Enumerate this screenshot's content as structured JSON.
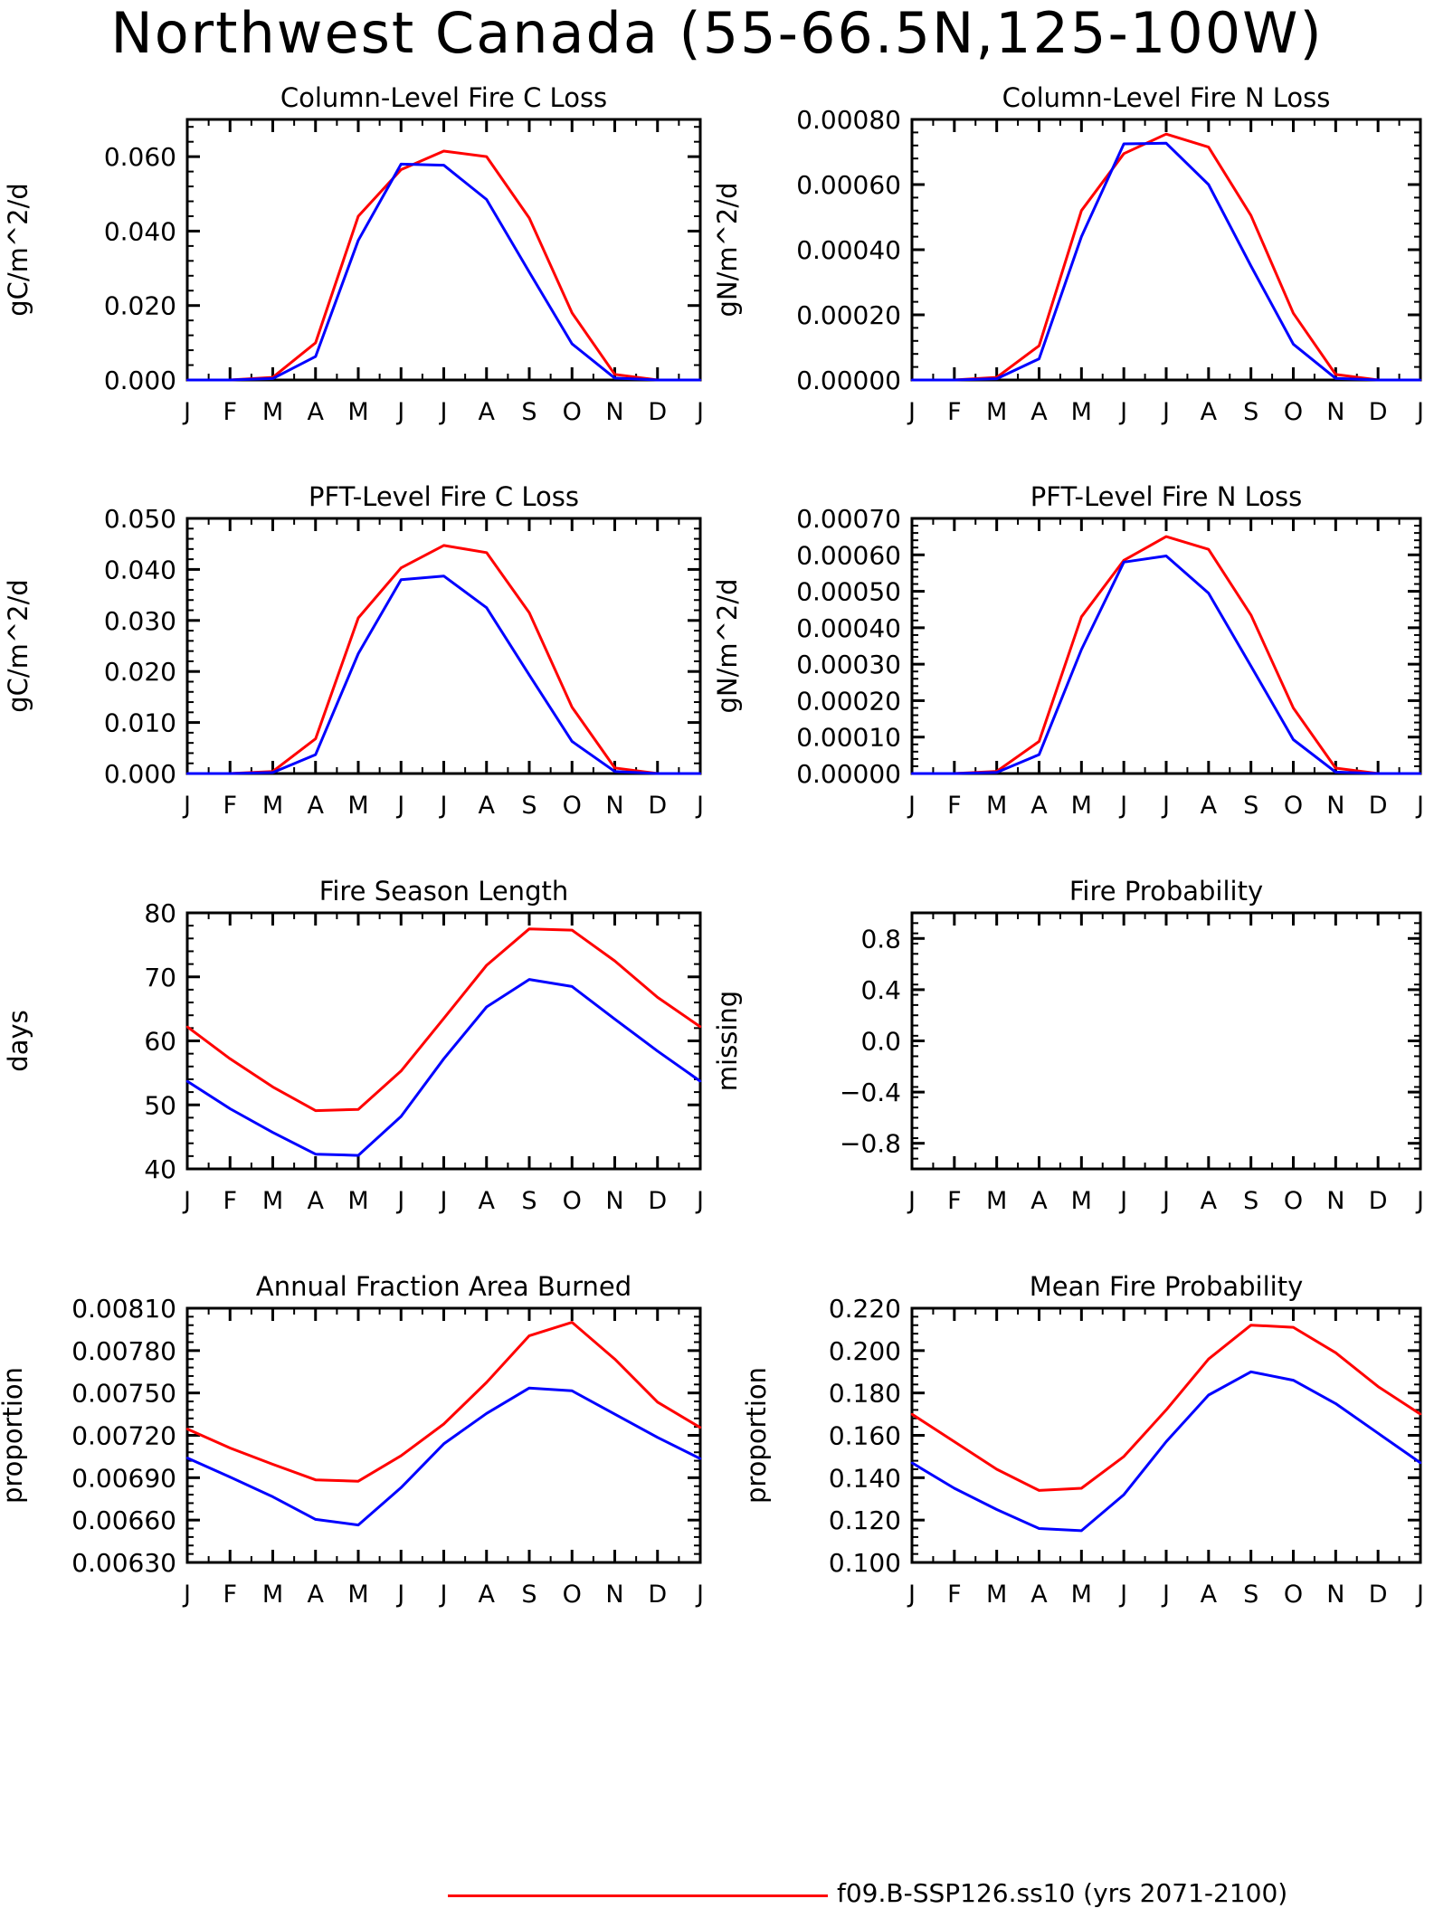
{
  "title": "Northwest Canada (55-66.5N,125-100W)",
  "legend": {
    "label": "f09.B-SSP126.ss10 (yrs 2071-2100)",
    "color": "#ff0000"
  },
  "colors": {
    "series_a": "#ff0000",
    "series_b": "#0000ff",
    "axis": "#000000"
  },
  "chart_data": [
    {
      "type": "line",
      "title": "Column-Level Fire C Loss",
      "ylabel": "gC/m^2/d",
      "categories": [
        "J",
        "F",
        "M",
        "A",
        "M",
        "J",
        "J",
        "A",
        "S",
        "O",
        "N",
        "D",
        "J"
      ],
      "ylim": [
        0,
        0.07
      ],
      "yticks": [
        0.0,
        0.02,
        0.04,
        0.06
      ],
      "ytick_labels": [
        "0.000",
        "0.020",
        "0.040",
        "0.060"
      ],
      "series": [
        {
          "color": "#ff0000",
          "values": [
            0.0,
            0.0,
            0.0007,
            0.01,
            0.044,
            0.0565,
            0.0615,
            0.06,
            0.0435,
            0.018,
            0.0015,
            0.0,
            0.0
          ]
        },
        {
          "color": "#0000ff",
          "values": [
            0.0,
            0.0,
            0.0004,
            0.0063,
            0.0375,
            0.058,
            0.0577,
            0.0485,
            0.029,
            0.0097,
            0.0005,
            0.0,
            0.0
          ]
        }
      ]
    },
    {
      "type": "line",
      "title": "Column-Level Fire N Loss",
      "ylabel": "gN/m^2/d",
      "categories": [
        "J",
        "F",
        "M",
        "A",
        "M",
        "J",
        "J",
        "A",
        "S",
        "O",
        "N",
        "D",
        "J"
      ],
      "ylim": [
        0,
        0.0008
      ],
      "yticks": [
        0.0,
        0.0002,
        0.0004,
        0.0006,
        0.0008
      ],
      "ytick_labels": [
        "0.00000",
        "0.00020",
        "0.00040",
        "0.00060",
        "0.00080"
      ],
      "series": [
        {
          "color": "#ff0000",
          "values": [
            0.0,
            0.0,
            8e-06,
            0.000105,
            0.00052,
            0.000695,
            0.000755,
            0.000715,
            0.000505,
            0.000205,
            1.7e-05,
            0.0,
            0.0
          ]
        },
        {
          "color": "#0000ff",
          "values": [
            0.0,
            0.0,
            4e-06,
            6.5e-05,
            0.00044,
            0.000725,
            0.000727,
            0.0006,
            0.00035,
            0.00011,
            5e-06,
            0.0,
            0.0
          ]
        }
      ]
    },
    {
      "type": "line",
      "title": "PFT-Level Fire C Loss",
      "ylabel": "gC/m^2/d",
      "categories": [
        "J",
        "F",
        "M",
        "A",
        "M",
        "J",
        "J",
        "A",
        "S",
        "O",
        "N",
        "D",
        "J"
      ],
      "ylim": [
        0,
        0.05
      ],
      "yticks": [
        0.0,
        0.01,
        0.02,
        0.03,
        0.04,
        0.05
      ],
      "ytick_labels": [
        "0.000",
        "0.010",
        "0.020",
        "0.030",
        "0.040",
        "0.050"
      ],
      "series": [
        {
          "color": "#ff0000",
          "values": [
            0.0,
            0.0,
            0.0004,
            0.0068,
            0.0305,
            0.0403,
            0.0447,
            0.0433,
            0.0315,
            0.013,
            0.0011,
            0.0,
            0.0
          ]
        },
        {
          "color": "#0000ff",
          "values": [
            0.0,
            0.0,
            0.0002,
            0.0037,
            0.0235,
            0.038,
            0.0387,
            0.0325,
            0.0193,
            0.0063,
            0.0004,
            0.0,
            0.0
          ]
        }
      ]
    },
    {
      "type": "line",
      "title": "PFT-Level Fire N Loss",
      "ylabel": "gN/m^2/d",
      "categories": [
        "J",
        "F",
        "M",
        "A",
        "M",
        "J",
        "J",
        "A",
        "S",
        "O",
        "N",
        "D",
        "J"
      ],
      "ylim": [
        0,
        0.0007
      ],
      "yticks": [
        0.0,
        0.0001,
        0.0002,
        0.0003,
        0.0004,
        0.0005,
        0.0006,
        0.0007
      ],
      "ytick_labels": [
        "0.00000",
        "0.00010",
        "0.00020",
        "0.00030",
        "0.00040",
        "0.00050",
        "0.00060",
        "0.00070"
      ],
      "series": [
        {
          "color": "#ff0000",
          "values": [
            0.0,
            0.0,
            6e-06,
            8.8e-05,
            0.00043,
            0.000585,
            0.00065,
            0.000615,
            0.000435,
            0.00018,
            1.5e-05,
            0.0,
            0.0
          ]
        },
        {
          "color": "#0000ff",
          "values": [
            0.0,
            0.0,
            3e-06,
            5.2e-05,
            0.00034,
            0.00058,
            0.000597,
            0.000495,
            0.000295,
            9.3e-05,
            4e-06,
            0.0,
            0.0
          ]
        }
      ]
    },
    {
      "type": "line",
      "title": "Fire Season Length",
      "ylabel": "days",
      "categories": [
        "J",
        "F",
        "M",
        "A",
        "M",
        "J",
        "J",
        "A",
        "S",
        "O",
        "N",
        "D",
        "J"
      ],
      "ylim": [
        40,
        80
      ],
      "yticks": [
        40,
        50,
        60,
        70,
        80
      ],
      "ytick_labels": [
        "40",
        "50",
        "60",
        "70",
        "80"
      ],
      "series": [
        {
          "color": "#ff0000",
          "values": [
            62.2,
            57.2,
            52.8,
            49.1,
            49.3,
            55.3,
            63.5,
            71.8,
            77.5,
            77.3,
            72.5,
            66.8,
            62.2
          ]
        },
        {
          "color": "#0000ff",
          "values": [
            53.7,
            49.4,
            45.7,
            42.3,
            42.1,
            48.2,
            57.2,
            65.3,
            69.6,
            68.5,
            63.4,
            58.4,
            53.7
          ]
        }
      ]
    },
    {
      "type": "line",
      "title": "Fire Probability",
      "ylabel": "missing",
      "categories": [
        "J",
        "F",
        "M",
        "A",
        "M",
        "J",
        "J",
        "A",
        "S",
        "O",
        "N",
        "D",
        "J"
      ],
      "ylim": [
        -1.0,
        1.0
      ],
      "yticks": [
        -0.8,
        -0.4,
        0.0,
        0.4,
        0.8
      ],
      "ytick_labels": [
        "−0.8",
        "−0.4",
        "0.0",
        "0.4",
        "0.8"
      ],
      "series": []
    },
    {
      "type": "line",
      "title": "Annual Fraction Area Burned",
      "ylabel": "proportion",
      "categories": [
        "J",
        "F",
        "M",
        "A",
        "M",
        "J",
        "J",
        "A",
        "S",
        "O",
        "N",
        "D",
        "J"
      ],
      "ylim": [
        0.0063,
        0.0081
      ],
      "yticks": [
        0.0063,
        0.0066,
        0.0069,
        0.0072,
        0.0075,
        0.0078,
        0.0081
      ],
      "ytick_labels": [
        "0.00630",
        "0.00660",
        "0.00690",
        "0.00720",
        "0.00750",
        "0.00780",
        "0.00810"
      ],
      "series": [
        {
          "color": "#ff0000",
          "values": [
            0.007245,
            0.00711,
            0.006995,
            0.006885,
            0.006875,
            0.007055,
            0.00728,
            0.007575,
            0.007905,
            0.008,
            0.00774,
            0.007435,
            0.007255
          ]
        },
        {
          "color": "#0000ff",
          "values": [
            0.00704,
            0.006905,
            0.006765,
            0.006605,
            0.006565,
            0.00683,
            0.00714,
            0.007355,
            0.007535,
            0.007515,
            0.00735,
            0.007185,
            0.007035
          ]
        }
      ]
    },
    {
      "type": "line",
      "title": "Mean Fire Probability",
      "ylabel": "proportion",
      "categories": [
        "J",
        "F",
        "M",
        "A",
        "M",
        "J",
        "J",
        "A",
        "S",
        "O",
        "N",
        "D",
        "J"
      ],
      "ylim": [
        0.1,
        0.22
      ],
      "yticks": [
        0.1,
        0.12,
        0.14,
        0.16,
        0.18,
        0.2,
        0.22
      ],
      "ytick_labels": [
        "0.100",
        "0.120",
        "0.140",
        "0.160",
        "0.180",
        "0.200",
        "0.220"
      ],
      "series": [
        {
          "color": "#ff0000",
          "values": [
            0.17,
            0.157,
            0.144,
            0.134,
            0.135,
            0.15,
            0.172,
            0.196,
            0.212,
            0.211,
            0.199,
            0.183,
            0.17
          ]
        },
        {
          "color": "#0000ff",
          "values": [
            0.147,
            0.135,
            0.125,
            0.116,
            0.115,
            0.132,
            0.157,
            0.179,
            0.19,
            0.186,
            0.175,
            0.161,
            0.147
          ]
        }
      ]
    }
  ]
}
